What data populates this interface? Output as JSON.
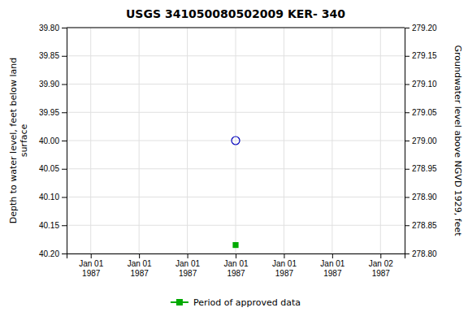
{
  "chart_data": {
    "type": "scatter",
    "title": "USGS 341050080502009 KER- 340",
    "y_label": "Depth to water level, feet below land\n              surface",
    "y2_label": "Groundwater level above NGVD 1929, feet",
    "categories": [
      "Jan 01\n1987",
      "Jan 01\n1987",
      "Jan 01\n1987",
      "Jan 01\n1987",
      "Jan 01\n1987",
      "Jan 01\n1987",
      "Jan 02\n1987"
    ],
    "ylim": [
      40.2,
      39.8
    ],
    "yticks": [
      {
        "value": 39.8,
        "label": "39.80"
      },
      {
        "value": 39.85,
        "label": "39.85"
      },
      {
        "value": 39.9,
        "label": "39.90"
      },
      {
        "value": 39.95,
        "label": "39.95"
      },
      {
        "value": 40.0,
        "label": "40.00"
      },
      {
        "value": 40.05,
        "label": "40.05"
      },
      {
        "value": 40.1,
        "label": "40.10"
      },
      {
        "value": 40.15,
        "label": "40.15"
      },
      {
        "value": 40.2,
        "label": "40.20"
      }
    ],
    "y2lim": [
      278.8,
      279.2
    ],
    "y2ticks": [
      {
        "value": 279.2,
        "label": "279.20"
      },
      {
        "value": 279.15,
        "label": "279.15"
      },
      {
        "value": 279.1,
        "label": "279.10"
      },
      {
        "value": 279.05,
        "label": "279.05"
      },
      {
        "value": 279.0,
        "label": "279.00"
      },
      {
        "value": 278.95,
        "label": "278.95"
      },
      {
        "value": 278.9,
        "label": "278.90"
      },
      {
        "value": 278.85,
        "label": "278.85"
      },
      {
        "value": 278.8,
        "label": "278.80"
      }
    ],
    "grid": true,
    "legend": "bottom",
    "series": [
      {
        "color": "#0000bb",
        "marker": "open-circle",
        "values": [
          null,
          null,
          null,
          40.0,
          null,
          null,
          null
        ]
      },
      {
        "name": "Period of approved data",
        "color": "#00aa00",
        "marker": "square",
        "values": [
          null,
          null,
          null,
          40.185,
          null,
          null,
          null
        ]
      }
    ]
  }
}
